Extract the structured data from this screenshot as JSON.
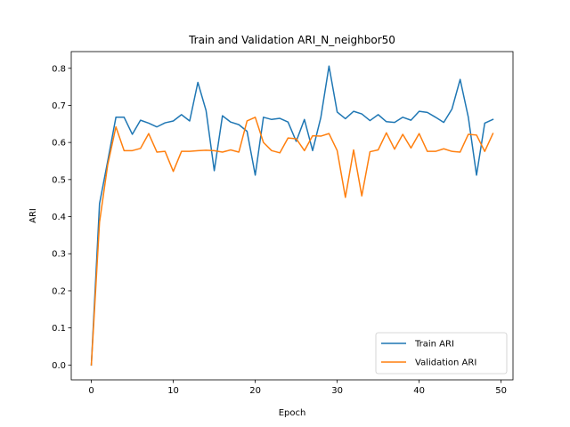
{
  "chart_data": {
    "type": "line",
    "title": "Train and Validation ARI_N_neighbor50",
    "xlabel": "Epoch",
    "ylabel": "ARI",
    "xlim": [
      -2.45,
      51.45
    ],
    "ylim": [
      -0.04,
      0.845
    ],
    "xticks": [
      0,
      10,
      20,
      30,
      40,
      50
    ],
    "yticks": [
      0.0,
      0.1,
      0.2,
      0.3,
      0.4,
      0.5,
      0.6,
      0.7,
      0.8
    ],
    "xtick_labels": [
      "0",
      "10",
      "20",
      "30",
      "40",
      "50"
    ],
    "ytick_labels": [
      "0.0",
      "0.1",
      "0.2",
      "0.3",
      "0.4",
      "0.5",
      "0.6",
      "0.7",
      "0.8"
    ],
    "grid": false,
    "legend_position": "lower-right",
    "x": [
      0,
      1,
      2,
      3,
      4,
      5,
      6,
      7,
      8,
      9,
      10,
      11,
      12,
      13,
      14,
      15,
      16,
      17,
      18,
      19,
      20,
      21,
      22,
      23,
      24,
      25,
      26,
      27,
      28,
      29,
      30,
      31,
      32,
      33,
      34,
      35,
      36,
      37,
      38,
      39,
      40,
      41,
      42,
      43,
      44,
      45,
      46,
      47,
      48,
      49
    ],
    "series": [
      {
        "name": "Train ARI",
        "color": "#1f77b4",
        "values": [
          0.0,
          0.435,
          0.55,
          0.668,
          0.668,
          0.622,
          0.66,
          0.652,
          0.642,
          0.653,
          0.658,
          0.675,
          0.658,
          0.762,
          0.686,
          0.524,
          0.672,
          0.655,
          0.648,
          0.63,
          0.512,
          0.668,
          0.662,
          0.665,
          0.655,
          0.603,
          0.662,
          0.578,
          0.667,
          0.806,
          0.682,
          0.664,
          0.684,
          0.677,
          0.659,
          0.675,
          0.656,
          0.654,
          0.668,
          0.66,
          0.684,
          0.681,
          0.668,
          0.654,
          0.69,
          0.77,
          0.668,
          0.512,
          0.652,
          0.662
        ]
      },
      {
        "name": "Validation ARI",
        "color": "#ff7f0e",
        "values": [
          0.0,
          0.385,
          0.54,
          0.642,
          0.578,
          0.578,
          0.584,
          0.624,
          0.574,
          0.576,
          0.522,
          0.576,
          0.576,
          0.578,
          0.579,
          0.578,
          0.574,
          0.58,
          0.574,
          0.658,
          0.668,
          0.6,
          0.578,
          0.572,
          0.612,
          0.61,
          0.578,
          0.618,
          0.617,
          0.624,
          0.578,
          0.452,
          0.58,
          0.456,
          0.575,
          0.58,
          0.626,
          0.582,
          0.622,
          0.585,
          0.624,
          0.576,
          0.576,
          0.583,
          0.576,
          0.574,
          0.622,
          0.62,
          0.576,
          0.624
        ]
      }
    ]
  }
}
